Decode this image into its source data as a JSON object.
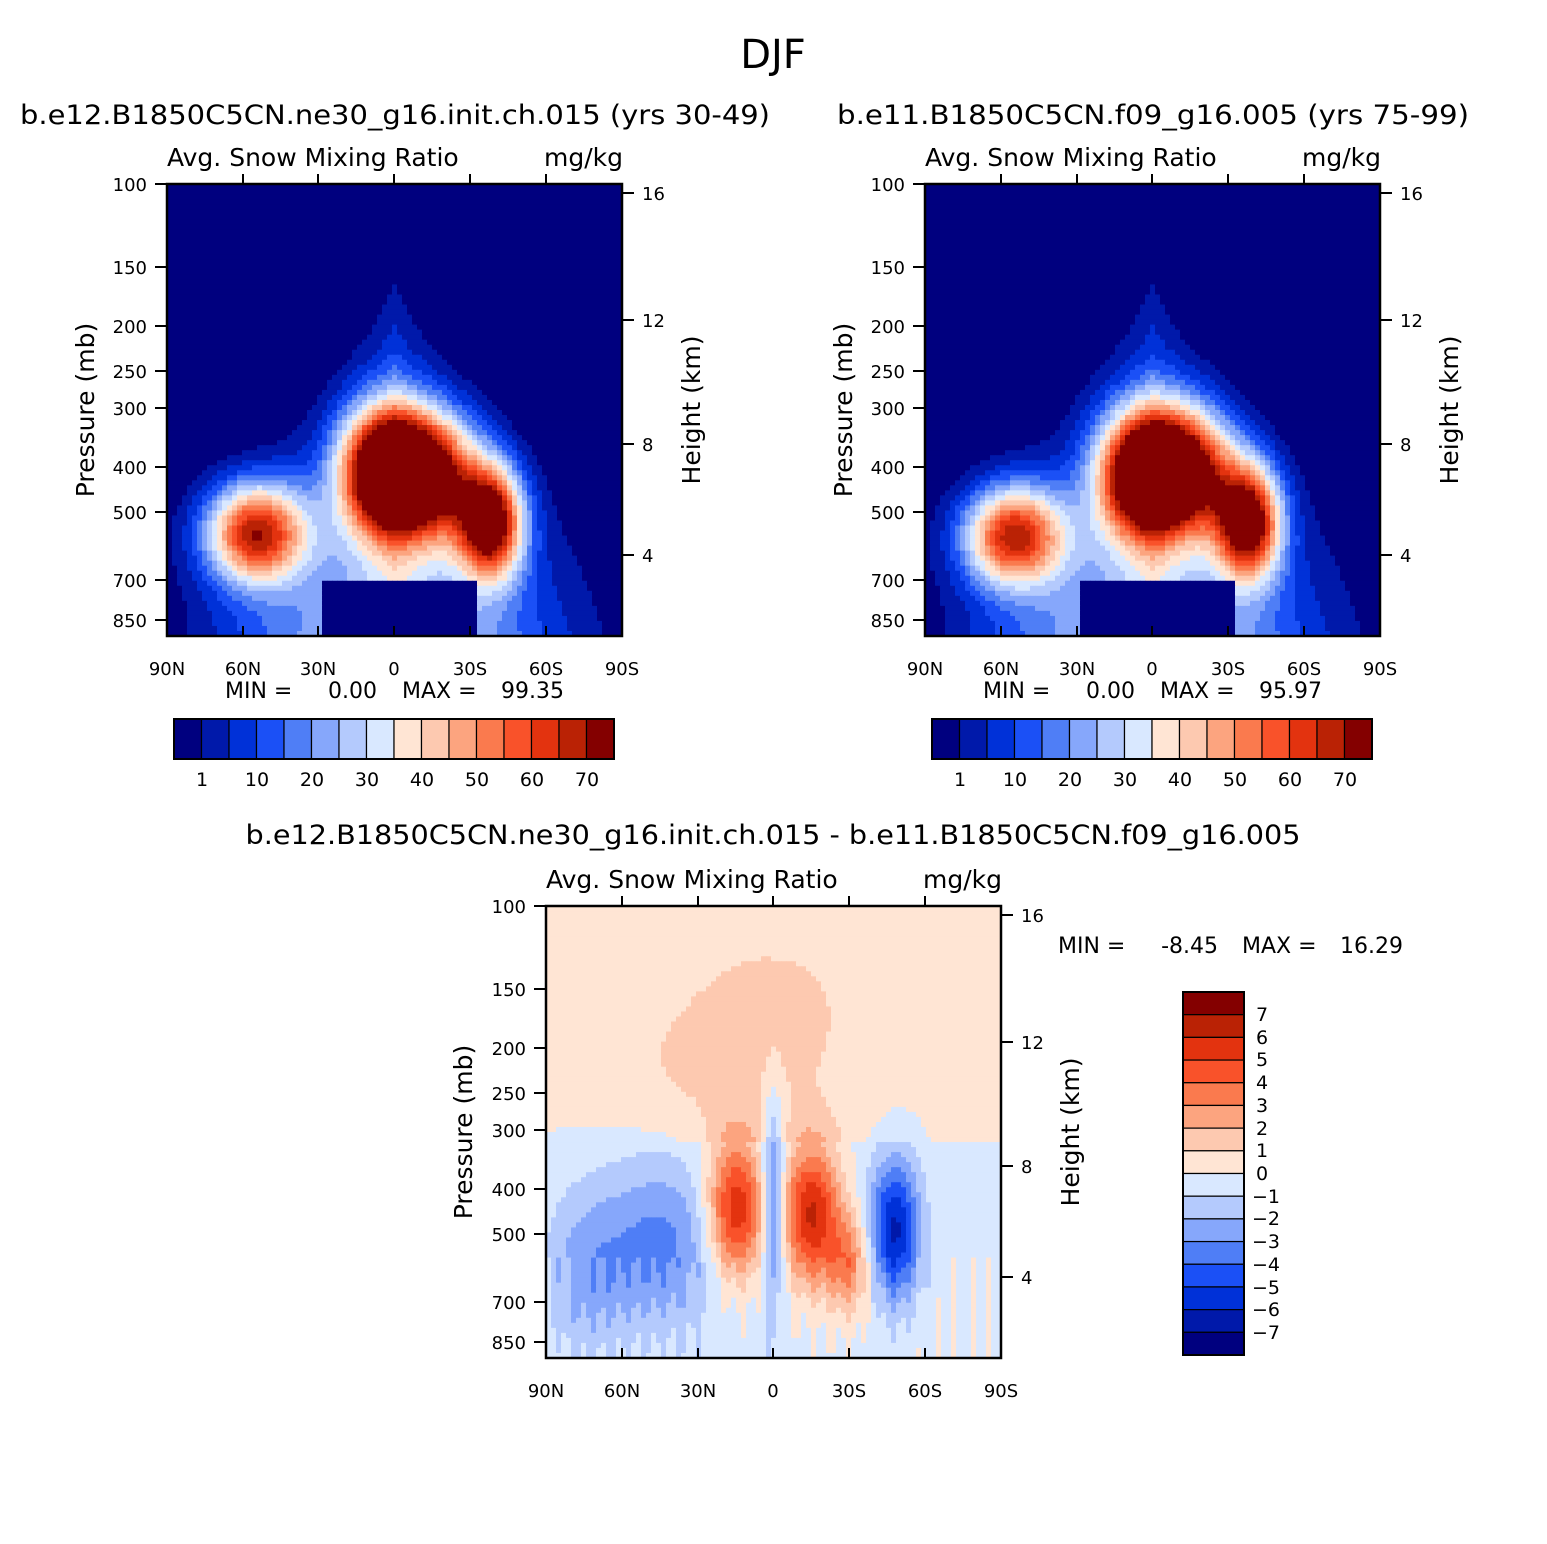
{
  "figure": {
    "title": "DJF"
  },
  "colors": {
    "abs_palette": [
      "#00007f",
      "#0019aa",
      "#0031d8",
      "#1b50f6",
      "#4f7ef6",
      "#86a7fb",
      "#b4cafd",
      "#d9e8ff",
      "#ffe5d4",
      "#fdc9b0",
      "#fca47f",
      "#fa7a4e",
      "#f9522a",
      "#e3330f",
      "#ba2205",
      "#840000"
    ],
    "diff_palette": [
      "#00007f",
      "#0019aa",
      "#0031d8",
      "#1b50f6",
      "#4f7ef6",
      "#86a7fb",
      "#b4cafd",
      "#d9e8ff",
      "#ffe5d4",
      "#fdc9b0",
      "#fca47f",
      "#fa7a4e",
      "#f9522a",
      "#e3330f",
      "#ba2205",
      "#840000"
    ]
  },
  "chart_data": [
    {
      "id": "p1",
      "type": "heatmap",
      "title": "b.e12.B1850C5CN.ne30_g16.init.ch.015 (yrs 30-49)",
      "left_label": "Avg. Snow Mixing Ratio",
      "right_label": "mg/kg",
      "ylabel": "Pressure (mb)",
      "ylabel2": "Height (km)",
      "xticks": [
        "90N",
        "60N",
        "30N",
        "0",
        "30S",
        "60S",
        "90S"
      ],
      "yticks": [
        "100",
        "150",
        "200",
        "250",
        "300",
        "400",
        "500",
        "700",
        "850"
      ],
      "yticks2": [
        "16",
        "12",
        "8",
        "4"
      ],
      "min_label": "MIN =",
      "min_value": "0.00",
      "max_label": "MAX =",
      "max_value": "99.35",
      "colorbar_ticks": [
        "1",
        "10",
        "20",
        "30",
        "40",
        "50",
        "60",
        "70"
      ],
      "boundary_level": 6,
      "lobes": [
        {
          "lat": -55,
          "p": 590,
          "sx": 14,
          "sy": 0.18,
          "amp": 13.5
        },
        {
          "lat": -5,
          "p": 430,
          "sx": 12,
          "sy": 0.22,
          "amp": 14.2
        },
        {
          "lat": 12,
          "p": 440,
          "sx": 14,
          "sy": 0.22,
          "amp": 14.6
        },
        {
          "lat": 38,
          "p": 560,
          "sx": 9,
          "sy": 0.2,
          "amp": 15.5
        }
      ]
    },
    {
      "id": "p2",
      "type": "heatmap",
      "title": "b.e11.B1850C5CN.f09_g16.005 (yrs 75-99)",
      "left_label": "Avg. Snow Mixing Ratio",
      "right_label": "mg/kg",
      "ylabel": "Pressure (mb)",
      "ylabel2": "Height (km)",
      "xticks": [
        "90N",
        "60N",
        "30N",
        "0",
        "30S",
        "60S",
        "90S"
      ],
      "yticks": [
        "100",
        "150",
        "200",
        "250",
        "300",
        "400",
        "500",
        "700",
        "850"
      ],
      "yticks2": [
        "16",
        "12",
        "8",
        "4"
      ],
      "min_label": "MIN =",
      "min_value": "0.00",
      "max_label": "MAX =",
      "max_value": "95.97",
      "colorbar_ticks": [
        "1",
        "10",
        "20",
        "30",
        "40",
        "50",
        "60",
        "70"
      ],
      "boundary_level": 6,
      "lobes": [
        {
          "lat": -55,
          "p": 600,
          "sx": 14,
          "sy": 0.18,
          "amp": 13.2
        },
        {
          "lat": -5,
          "p": 440,
          "sx": 12,
          "sy": 0.22,
          "amp": 13.8
        },
        {
          "lat": 12,
          "p": 430,
          "sx": 14,
          "sy": 0.22,
          "amp": 14.4
        },
        {
          "lat": 38,
          "p": 560,
          "sx": 9,
          "sy": 0.2,
          "amp": 15.3
        }
      ]
    },
    {
      "id": "p3",
      "type": "heatmap",
      "title": "b.e12.B1850C5CN.ne30_g16.init.ch.015 - b.e11.B1850C5CN.f09_g16.005",
      "left_label": "Avg. Snow Mixing Ratio",
      "right_label": "mg/kg",
      "ylabel": "Pressure (mb)",
      "ylabel2": "Height (km)",
      "xticks": [
        "90N",
        "60N",
        "30N",
        "0",
        "30S",
        "60S",
        "90S"
      ],
      "yticks": [
        "100",
        "150",
        "200",
        "250",
        "300",
        "400",
        "500",
        "700",
        "850"
      ],
      "yticks2": [
        "16",
        "12",
        "8",
        "4"
      ],
      "min_label": "MIN =",
      "min_value": "-8.45",
      "max_label": "MAX =",
      "max_value": "16.29",
      "colorbar_ticks": [
        "7",
        "6",
        "5",
        "4",
        "3",
        "2",
        "1",
        "0",
        "−1",
        "−2",
        "−3",
        "−4",
        "−5",
        "−6",
        "−7"
      ],
      "lobes": [
        {
          "lat": -15,
          "p": 470,
          "sx": 8,
          "sy": 0.25,
          "amp": 6.5
        },
        {
          "lat": 15,
          "p": 480,
          "sx": 8,
          "sy": 0.25,
          "amp": 6.5
        },
        {
          "lat": 30,
          "p": 620,
          "sx": 6,
          "sy": 0.18,
          "amp": 3.5
        },
        {
          "lat": 0,
          "p": 450,
          "sx": 3,
          "sy": 0.35,
          "amp": -4.5
        },
        {
          "lat": 48,
          "p": 520,
          "sx": 7,
          "sy": 0.25,
          "amp": -6.0
        },
        {
          "lat": -45,
          "p": 560,
          "sx": 18,
          "sy": 0.3,
          "amp": -3.0
        },
        {
          "lat": -75,
          "p": 650,
          "sx": 12,
          "sy": 0.3,
          "amp": -2.0
        },
        {
          "lat": 0,
          "p": 170,
          "sx": 30,
          "sy": 0.35,
          "amp": 0.9
        },
        {
          "lat": -30,
          "p": 230,
          "sx": 25,
          "sy": 0.25,
          "amp": 0.7
        }
      ]
    }
  ]
}
